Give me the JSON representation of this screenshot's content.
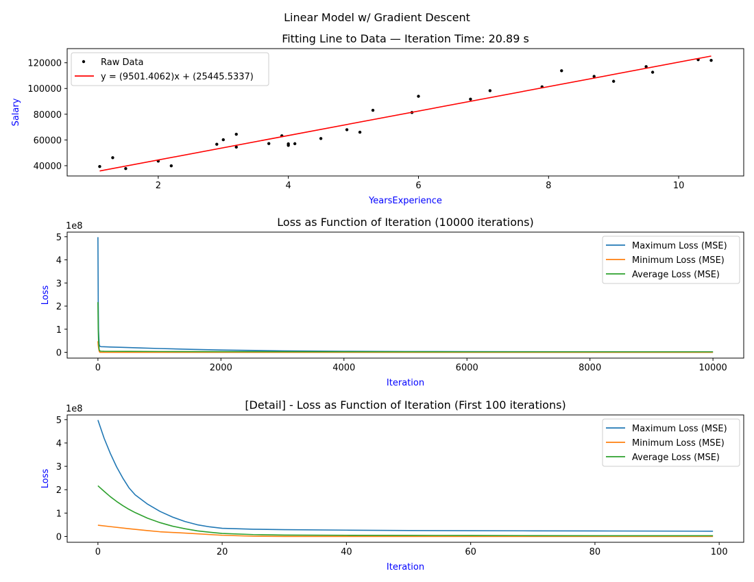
{
  "figure": {
    "suptitle": "Linear Model w/ Gradient Descent"
  },
  "chart_data": [
    {
      "type": "scatter",
      "title": "Fitting Line to Data — Iteration Time: 20.89 s",
      "xlabel": "YearsExperience",
      "ylabel": "Salary",
      "xlim": [
        0.6,
        11.0
      ],
      "ylim": [
        32000,
        131000
      ],
      "xticks": [
        2,
        4,
        6,
        8,
        10
      ],
      "yticks": [
        40000,
        60000,
        80000,
        100000,
        120000
      ],
      "legend_position": "upper-left",
      "grid": false,
      "series": [
        {
          "name": "Raw Data",
          "kind": "scatter",
          "color": "#000000",
          "x": [
            1.1,
            1.3,
            1.5,
            2.0,
            2.2,
            2.9,
            3.0,
            3.2,
            3.2,
            3.7,
            3.9,
            4.0,
            4.0,
            4.1,
            4.5,
            4.9,
            5.1,
            5.3,
            5.9,
            6.0,
            6.8,
            7.1,
            7.9,
            8.2,
            8.7,
            9.0,
            9.5,
            9.6,
            10.3,
            10.5
          ],
          "y": [
            39343,
            46205,
            37731,
            43525,
            39891,
            56642,
            60150,
            54445,
            64445,
            57189,
            63218,
            55794,
            56957,
            57081,
            61111,
            67938,
            66029,
            83088,
            81363,
            93940,
            91738,
            98273,
            101302,
            113812,
            109431,
            105582,
            116969,
            112635,
            122391,
            121872
          ]
        },
        {
          "name": "y = (9501.4062)x + (25445.5337)",
          "kind": "line",
          "color": "#ff0000",
          "slope": 9501.4062,
          "intercept": 25445.5337,
          "x": [
            1.1,
            10.5
          ],
          "y": [
            35897.08,
            125210.3
          ]
        }
      ]
    },
    {
      "type": "line",
      "title": "Loss as Function of Iteration (10000 iterations)",
      "xlabel": "Iteration",
      "ylabel": "Loss",
      "y_scale_label": "1e8",
      "y_scale": 100000000,
      "xlim": [
        -500,
        10500
      ],
      "ylim": [
        -0.25,
        5.2
      ],
      "xticks": [
        0,
        2000,
        4000,
        6000,
        8000,
        10000
      ],
      "yticks": [
        0,
        1,
        2,
        3,
        4,
        5
      ],
      "legend_position": "upper-right",
      "grid": false,
      "series": [
        {
          "name": "Maximum Loss (MSE)",
          "color": "#1f77b4",
          "x": [
            0,
            5,
            10,
            20,
            30,
            50,
            100,
            200,
            400,
            700,
            1000,
            1500,
            2000,
            3000,
            4000,
            5000,
            6000,
            7000,
            8000,
            9000,
            10000
          ],
          "y": [
            4.98,
            2.2,
            0.95,
            0.35,
            0.26,
            0.245,
            0.24,
            0.23,
            0.215,
            0.19,
            0.165,
            0.13,
            0.1,
            0.065,
            0.045,
            0.035,
            0.03,
            0.025,
            0.022,
            0.02,
            0.02
          ]
        },
        {
          "name": "Minimum Loss (MSE)",
          "color": "#ff7f0e",
          "x": [
            0,
            5,
            10,
            20,
            30,
            50,
            100,
            500,
            1000,
            2000,
            4000,
            6000,
            8000,
            10000
          ],
          "y": [
            0.48,
            0.3,
            0.2,
            0.05,
            0.0,
            0.0,
            0.0,
            0.0,
            0.0,
            0.0,
            0.0,
            0.0,
            0.0,
            0.0
          ]
        },
        {
          "name": "Average Loss (MSE)",
          "color": "#2ca02c",
          "x": [
            0,
            5,
            10,
            20,
            30,
            50,
            100,
            500,
            1000,
            2000,
            4000,
            6000,
            8000,
            10000
          ],
          "y": [
            2.17,
            1.0,
            0.5,
            0.12,
            0.06,
            0.05,
            0.045,
            0.04,
            0.035,
            0.03,
            0.025,
            0.02,
            0.02,
            0.02
          ]
        }
      ]
    },
    {
      "type": "line",
      "title": "[Detail] - Loss as Function of Iteration (First 100 iterations)",
      "xlabel": "Iteration",
      "ylabel": "Loss",
      "y_scale_label": "1e8",
      "y_scale": 100000000,
      "xlim": [
        -4.95,
        103.95
      ],
      "ylim": [
        -0.25,
        5.2
      ],
      "xticks": [
        0,
        20,
        40,
        60,
        80,
        100
      ],
      "yticks": [
        0,
        1,
        2,
        3,
        4,
        5
      ],
      "legend_position": "upper-right",
      "grid": false,
      "series": [
        {
          "name": "Maximum Loss (MSE)",
          "color": "#1f77b4",
          "x": [
            0,
            1,
            2,
            3,
            4,
            5,
            6,
            8,
            10,
            12,
            14,
            16,
            18,
            20,
            25,
            30,
            40,
            50,
            60,
            70,
            80,
            90,
            99
          ],
          "y": [
            4.98,
            4.2,
            3.55,
            2.98,
            2.5,
            2.08,
            1.78,
            1.38,
            1.07,
            0.83,
            0.64,
            0.5,
            0.41,
            0.35,
            0.31,
            0.29,
            0.27,
            0.255,
            0.245,
            0.24,
            0.235,
            0.23,
            0.225
          ]
        },
        {
          "name": "Minimum Loss (MSE)",
          "color": "#ff7f0e",
          "x": [
            0,
            2,
            5,
            8,
            10,
            15,
            20,
            25,
            30,
            40,
            50,
            60,
            70,
            80,
            90,
            99
          ],
          "y": [
            0.48,
            0.42,
            0.33,
            0.25,
            0.2,
            0.13,
            0.05,
            0.01,
            0.0,
            0.0,
            0.0,
            0.0,
            0.0,
            0.0,
            0.0,
            0.0
          ]
        },
        {
          "name": "Average Loss (MSE)",
          "color": "#2ca02c",
          "x": [
            0,
            1,
            2,
            3,
            4,
            5,
            6,
            8,
            10,
            12,
            14,
            16,
            18,
            20,
            25,
            30,
            40,
            50,
            60,
            70,
            80,
            90,
            99
          ],
          "y": [
            2.17,
            1.93,
            1.7,
            1.5,
            1.32,
            1.16,
            1.02,
            0.78,
            0.59,
            0.44,
            0.33,
            0.24,
            0.18,
            0.13,
            0.08,
            0.06,
            0.05,
            0.045,
            0.04,
            0.035,
            0.03,
            0.03,
            0.03
          ]
        }
      ]
    }
  ]
}
